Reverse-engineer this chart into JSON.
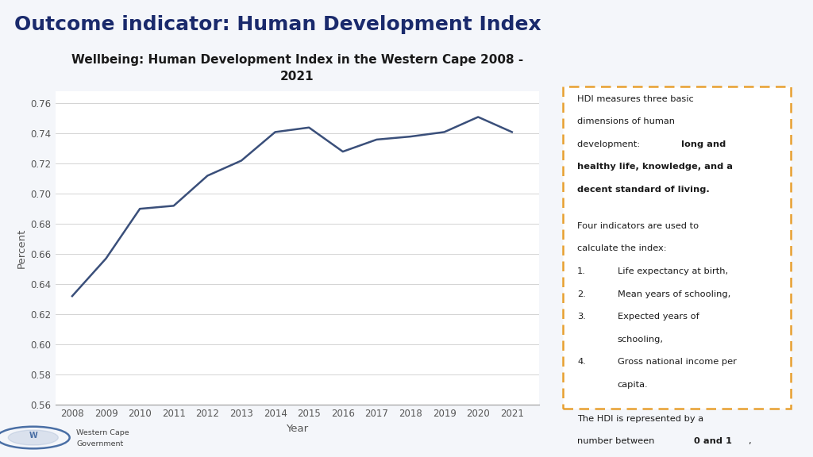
{
  "title": "Outcome indicator: Human Development Index",
  "chart_title": "Wellbeing: Human Development Index in the Western Cape 2008 -\n2021",
  "xlabel": "Year",
  "ylabel": "Percent",
  "years": [
    2008,
    2009,
    2010,
    2011,
    2012,
    2013,
    2014,
    2015,
    2016,
    2017,
    2018,
    2019,
    2020,
    2021
  ],
  "values": [
    0.632,
    0.657,
    0.69,
    0.692,
    0.712,
    0.722,
    0.741,
    0.744,
    0.728,
    0.736,
    0.738,
    0.741,
    0.751,
    0.741
  ],
  "line_color": "#3a4f7a",
  "ylim_low": 0.56,
  "ylim_high": 0.768,
  "yticks": [
    0.56,
    0.58,
    0.6,
    0.62,
    0.64,
    0.66,
    0.68,
    0.7,
    0.72,
    0.74,
    0.76
  ],
  "bg_color": "#f4f6fa",
  "plot_bg": "#ffffff",
  "title_color": "#1a2a6c",
  "sep_color": "#7b8ec8",
  "box_border_color": "#e8a030",
  "text_color": "#1a1a1a",
  "tick_color": "#555555",
  "logo_color": "#4a6fa5",
  "grid_color": "#d0d0d0",
  "spine_color": "#999999"
}
